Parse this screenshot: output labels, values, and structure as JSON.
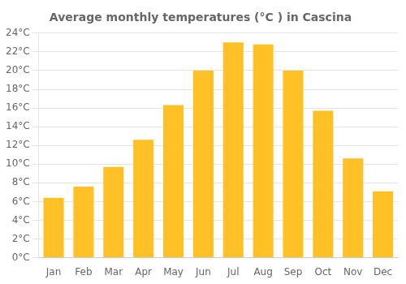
{
  "chart_data": {
    "type": "bar",
    "title": "Average monthly temperatures (°C ) in Cascina",
    "categories": [
      "Jan",
      "Feb",
      "Mar",
      "Apr",
      "May",
      "Jun",
      "Jul",
      "Aug",
      "Sep",
      "Oct",
      "Nov",
      "Dec"
    ],
    "values": [
      6.4,
      7.6,
      9.7,
      12.6,
      16.3,
      20.0,
      23.0,
      22.8,
      20.0,
      15.7,
      10.6,
      7.1
    ],
    "color": "#FFC125",
    "ylim": [
      0,
      24
    ],
    "yticks": [
      {
        "value": 0,
        "label": "0°C"
      },
      {
        "value": 2,
        "label": "2°C"
      },
      {
        "value": 4,
        "label": "4°C"
      },
      {
        "value": 6,
        "label": "6°C"
      },
      {
        "value": 8,
        "label": "8°C"
      },
      {
        "value": 10,
        "label": "10°C"
      },
      {
        "value": 12,
        "label": "12°C"
      },
      {
        "value": 14,
        "label": "14°C"
      },
      {
        "value": 16,
        "label": "16°C"
      },
      {
        "value": 18,
        "label": "18°C"
      },
      {
        "value": 20,
        "label": "20°C"
      },
      {
        "value": 22,
        "label": "22°C"
      },
      {
        "value": 24,
        "label": "24°C"
      }
    ],
    "grid": true
  }
}
